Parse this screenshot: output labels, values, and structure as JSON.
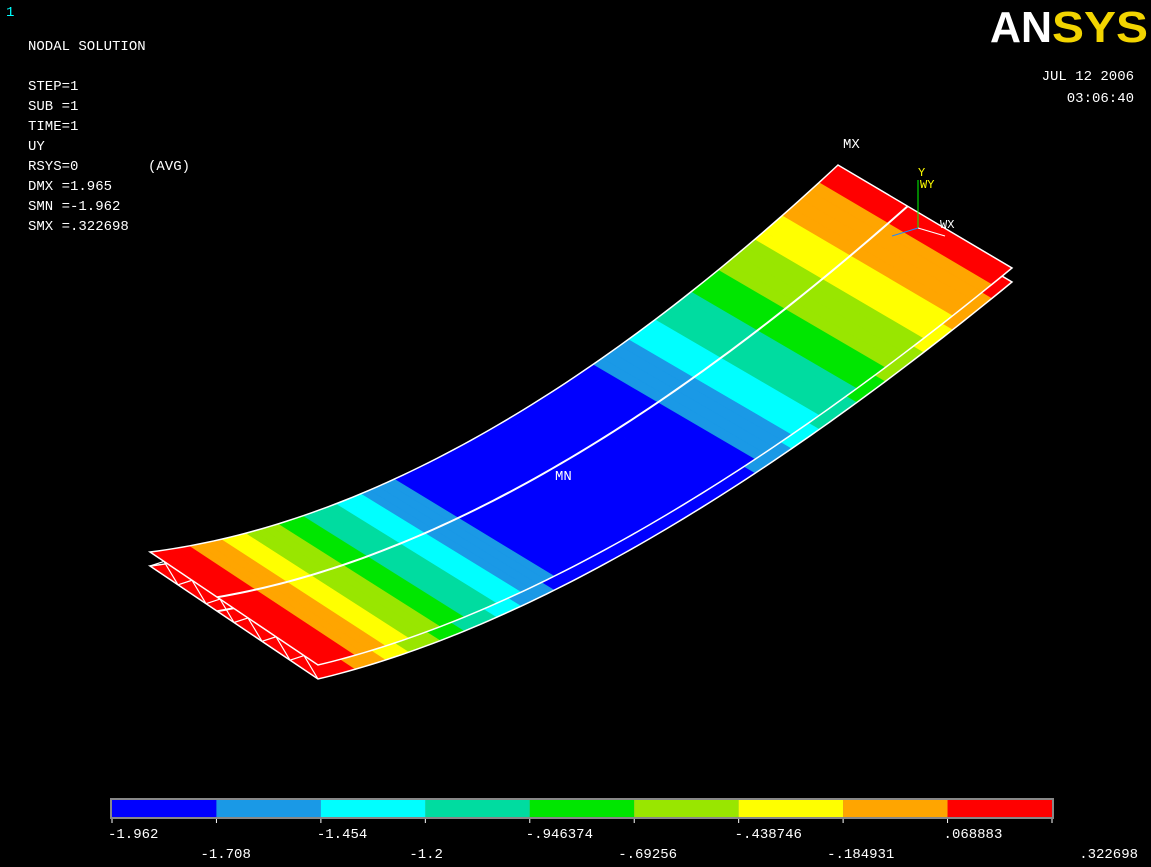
{
  "window_number": "1",
  "title": "NODAL SOLUTION",
  "info": [
    "STEP=1",
    "SUB =1",
    "TIME=1",
    "UY",
    "RSYS=0",
    "DMX =1.965",
    "SMN =-1.962",
    "SMX =.322698"
  ],
  "avg_tag": "(AVG)",
  "logo": {
    "part1": "AN",
    "part2": "SYS"
  },
  "date": "JUL 12 2006",
  "time": "03:06:40",
  "markers": {
    "max": "MX",
    "min": "MN"
  },
  "triad": {
    "y": "Y",
    "wy": "WY",
    "wx": "WX"
  },
  "legend": {
    "colors": [
      "#0000ff",
      "#1a99e6",
      "#00ffff",
      "#00dca0",
      "#00e600",
      "#99e600",
      "#ffff00",
      "#ffa500",
      "#ff0000"
    ],
    "labels": [
      "-1.962",
      "-1.708",
      "-1.454",
      "-1.2",
      "-.946374",
      "-.69256",
      "-.438746",
      "-.184931",
      ".068883",
      ".322698"
    ]
  }
}
